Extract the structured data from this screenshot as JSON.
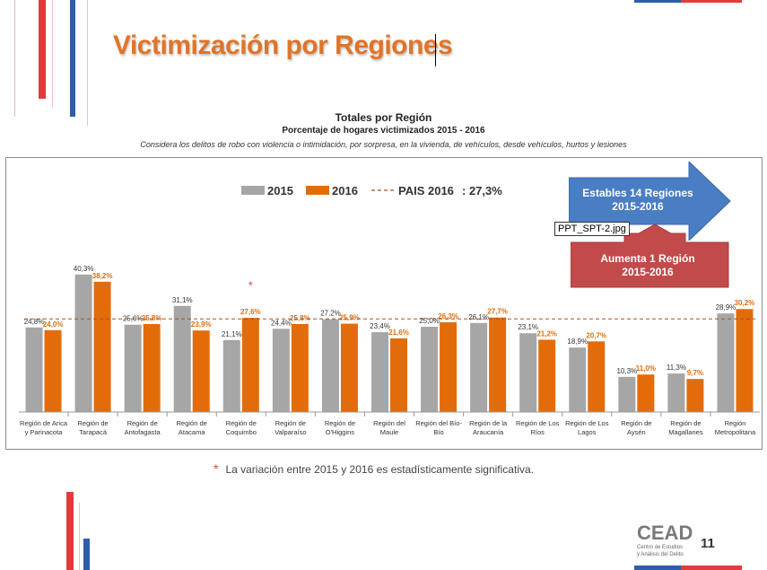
{
  "slide": {
    "title": "Victimización por Regiones",
    "page_number": "11",
    "footnote_star": "*",
    "footnote": "La variación entre 2015 y 2016 es estadísticamente significativa.",
    "logo": {
      "name": "CEAD",
      "line1": "Centro de Estudios",
      "line2": "y Análisis del Delito"
    },
    "tooltip": "PPT_SPT-2.jpg",
    "colors": {
      "title": "#e07428",
      "accent_red": "#e03c3c",
      "accent_blue": "#2c5fa8"
    }
  },
  "callouts": {
    "stable": {
      "line1": "Estables 14 Regiones",
      "line2": "2015-2016",
      "color": "#4a7ec4"
    },
    "increase": {
      "line1": "Aumenta 1 Región",
      "line2": "2015-2016",
      "color": "#c24a4a"
    }
  },
  "chart_data": {
    "type": "bar",
    "title": "Totales por Región",
    "subtitle": "Porcentaje de hogares victimizados 2015 - 2016",
    "description": "Considera los delitos de robo con violencia o intimidación, por sorpresa, en la vivienda, de vehículos, desde vehículos, hurtos y lesiones",
    "categories": [
      [
        "Región de Arica",
        "y Parinacota"
      ],
      [
        "Región de",
        "Tarapacá"
      ],
      [
        "Región de",
        "Antofagasta"
      ],
      [
        "Región de",
        "Atacama"
      ],
      [
        "Región de",
        "Coquimbo"
      ],
      [
        "Región de",
        "Valparaíso"
      ],
      [
        "Región de",
        "O'Higgins"
      ],
      [
        "Región del",
        "Maule"
      ],
      [
        "Región del Bío-",
        "Bío"
      ],
      [
        "Región de la",
        "Araucanía"
      ],
      [
        "Región de Los",
        "Ríos"
      ],
      [
        "Región de Los",
        "Lagos"
      ],
      [
        "Región de",
        "Aysén"
      ],
      [
        "Región de",
        "Magallanes"
      ],
      [
        "Región",
        "Metropolitana"
      ]
    ],
    "series": [
      {
        "name": "2015",
        "color": "#a6a6a6",
        "values": [
          24.8,
          40.3,
          25.6,
          31.1,
          21.1,
          24.4,
          27.2,
          23.4,
          25.0,
          26.1,
          23.1,
          18.9,
          10.3,
          11.3,
          28.9
        ],
        "labels": [
          "24,8%",
          "40,3%",
          "25,6%",
          "31,1%",
          "21,1%",
          "24,4%",
          "27,2%",
          "23,4%",
          "25,0%",
          "26,1%",
          "23,1%",
          "18,9%",
          "10,3%",
          "11,3%",
          "28,9%"
        ]
      },
      {
        "name": "2016",
        "color": "#e36c0a",
        "values": [
          24.0,
          38.2,
          25.8,
          23.9,
          27.6,
          25.8,
          25.9,
          21.6,
          26.3,
          27.7,
          21.2,
          20.7,
          11.0,
          9.7,
          30.2
        ],
        "labels": [
          "24,0%",
          "38,2%",
          "25,8%",
          "23,9%",
          "27,6%",
          "25,8%",
          "25,9%",
          "21,6%",
          "26,3%",
          "27,7%",
          "21,2%",
          "20,7%",
          "11,0%",
          "9,7%",
          "30,2%"
        ]
      }
    ],
    "reference_line": {
      "label": "PAIS 2016",
      "value": 27.3,
      "value_label": ": 27,3%"
    },
    "significant_marker": "*",
    "significant_index": 4,
    "ylim": [
      0,
      45
    ],
    "grid": false,
    "legend": "top-center"
  }
}
